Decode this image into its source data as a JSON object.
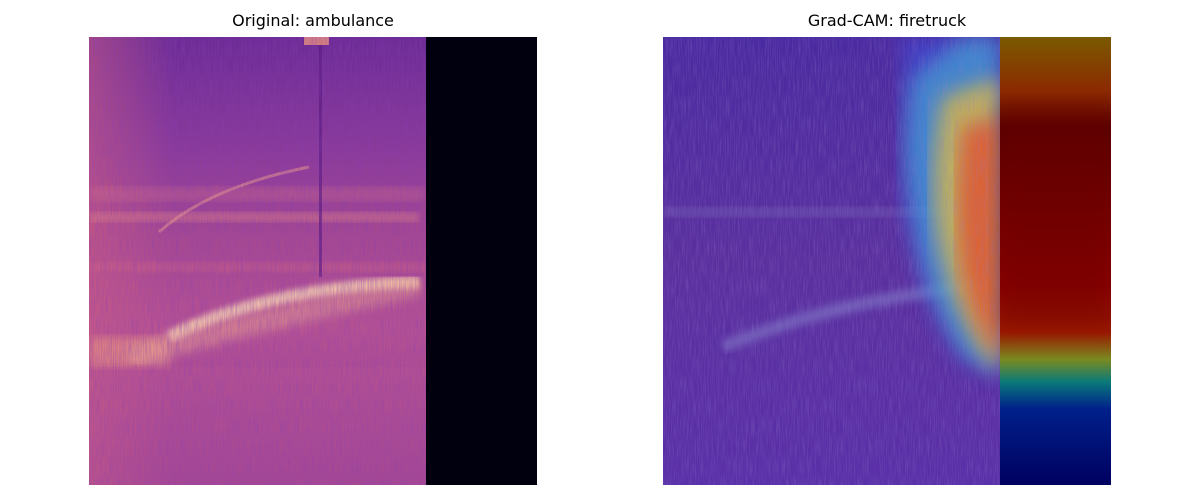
{
  "panels": {
    "left": {
      "title": "Original: ambulance"
    },
    "right": {
      "title": "Grad-CAM: firetruck"
    }
  },
  "colors": {
    "spectrogram_low": "#3a0f78",
    "spectrogram_mid": "#c04a8e",
    "spectrogram_high": "#f6c28a",
    "padding_black": "#00000f",
    "cam_blue": "#000080",
    "cam_cyan": "#2fc6c8",
    "cam_yellow": "#f5c12e",
    "cam_red": "#a00000"
  }
}
